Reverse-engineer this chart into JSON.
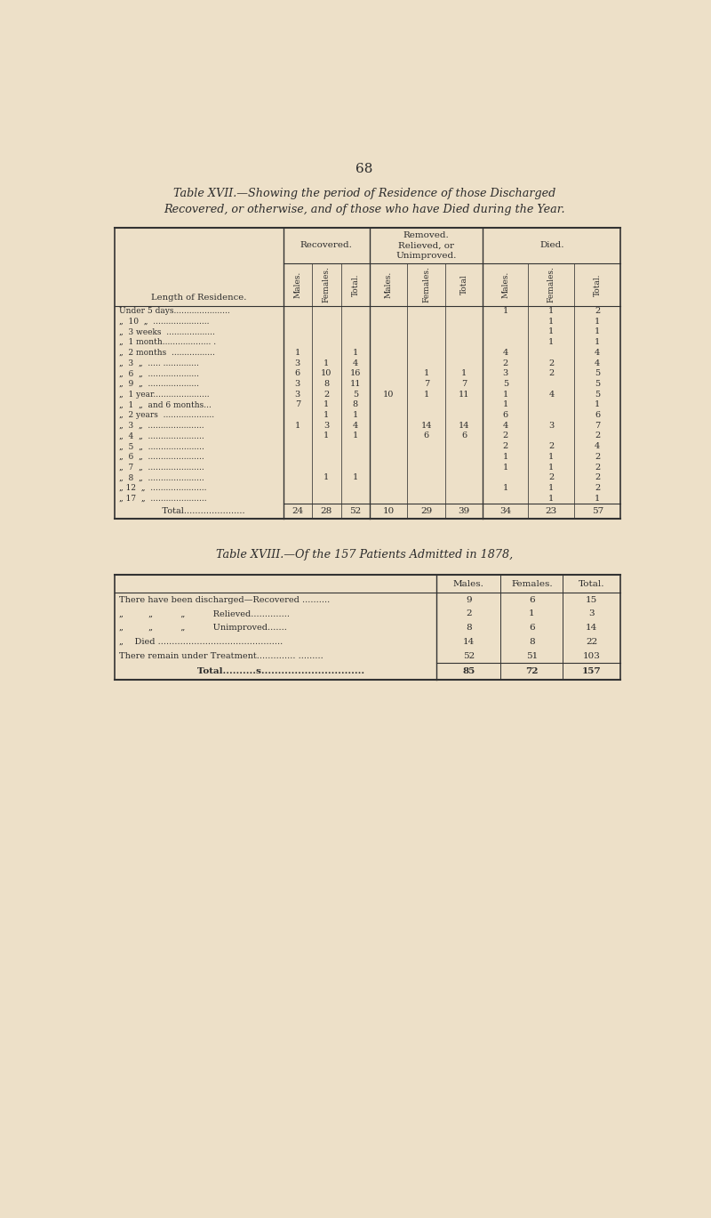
{
  "bg_color": "#EDE0C8",
  "page_number": "68",
  "title17_line1": "Table XVII.—Showing the period of Residence of those Discharged",
  "title17_line2": "Recovered, or otherwise, and of those who have Died during the Year.",
  "title18": "Table XVIII.—Of the 157 Patients Admitted in 1878,",
  "table17_subheaders": [
    "Males.",
    "Females.",
    "Total.",
    "Males.",
    "Females.",
    "Total",
    "Males.",
    "Females.",
    "Total."
  ],
  "table17_col0_header": "Length of Residence.",
  "table17_rows": [
    {
      "label": "Under 5 days......................",
      "rec_m": "",
      "rec_f": "",
      "rec_t": "",
      "rem_m": "",
      "rem_f": "",
      "rem_t": "",
      "die_m": "1",
      "die_f": "1",
      "die_t": "2"
    },
    {
      "label": "„  10  „  ......................",
      "rec_m": "",
      "rec_f": "",
      "rec_t": "",
      "rem_m": "",
      "rem_f": "",
      "rem_t": "",
      "die_m": "",
      "die_f": "1",
      "die_t": "1"
    },
    {
      "label": "„  3 weeks  ...................",
      "rec_m": "",
      "rec_f": "",
      "rec_t": "",
      "rem_m": "",
      "rem_f": "",
      "rem_t": "",
      "die_m": "",
      "die_f": "1",
      "die_t": "1"
    },
    {
      "label": "„  1 month................... .",
      "rec_m": "",
      "rec_f": "",
      "rec_t": "",
      "rem_m": "",
      "rem_f": "",
      "rem_t": "",
      "die_m": "",
      "die_f": "1",
      "die_t": "1"
    },
    {
      "label": "„  2 months  .................",
      "rec_m": "1",
      "rec_f": "",
      "rec_t": "1",
      "rem_m": "",
      "rem_f": "",
      "rem_t": "",
      "die_m": "4",
      "die_f": "",
      "die_t": "4"
    },
    {
      "label": "„  3  „  ..... ..............",
      "rec_m": "3",
      "rec_f": "1",
      "rec_t": "4",
      "rem_m": "",
      "rem_f": "",
      "rem_t": "",
      "die_m": "2",
      "die_f": "2",
      "die_t": "4"
    },
    {
      "label": "„  6  „  ....................",
      "rec_m": "6",
      "rec_f": "10",
      "rec_t": "16",
      "rem_m": "",
      "rem_f": "1",
      "rem_t": "1",
      "die_m": "3",
      "die_f": "2",
      "die_t": "5"
    },
    {
      "label": "„  9  „  ....................",
      "rec_m": "3",
      "rec_f": "8",
      "rec_t": "11",
      "rem_m": "",
      "rem_f": "7",
      "rem_t": "7",
      "die_m": "5",
      "die_f": "",
      "die_t": "5"
    },
    {
      "label": "„  1 year......................",
      "rec_m": "3",
      "rec_f": "2",
      "rec_t": "5",
      "rem_m": "10",
      "rem_f": "1",
      "rem_t": "11",
      "die_m": "1",
      "die_f": "4",
      "die_t": "5"
    },
    {
      "label": "„  1  „  and 6 months...",
      "rec_m": "7",
      "rec_f": "1",
      "rec_t": "8",
      "rem_m": "",
      "rem_f": "",
      "rem_t": "",
      "die_m": "1",
      "die_f": "",
      "die_t": "1"
    },
    {
      "label": "„  2 years  ....................",
      "rec_m": "",
      "rec_f": "1",
      "rec_t": "1",
      "rem_m": "",
      "rem_f": "",
      "rem_t": "",
      "die_m": "6",
      "die_f": "",
      "die_t": "6"
    },
    {
      "label": "„  3  „  ......................",
      "rec_m": "1",
      "rec_f": "3",
      "rec_t": "4",
      "rem_m": "",
      "rem_f": "14",
      "rem_t": "14",
      "die_m": "4",
      "die_f": "3",
      "die_t": "7"
    },
    {
      "label": "„  4  „  ......................",
      "rec_m": "",
      "rec_f": "1",
      "rec_t": "1",
      "rem_m": "",
      "rem_f": "6",
      "rem_t": "6",
      "die_m": "2",
      "die_f": "",
      "die_t": "2"
    },
    {
      "label": "„  5  „  ......................",
      "rec_m": "",
      "rec_f": "",
      "rec_t": "",
      "rem_m": "",
      "rem_f": "",
      "rem_t": "",
      "die_m": "2",
      "die_f": "2",
      "die_t": "4"
    },
    {
      "label": "„  6  „  ......................",
      "rec_m": "",
      "rec_f": "",
      "rec_t": "",
      "rem_m": "",
      "rem_f": "",
      "rem_t": "",
      "die_m": "1",
      "die_f": "1",
      "die_t": "2"
    },
    {
      "label": "„  7  „  ......................",
      "rec_m": "",
      "rec_f": "",
      "rec_t": "",
      "rem_m": "",
      "rem_f": "",
      "rem_t": "",
      "die_m": "1",
      "die_f": "1",
      "die_t": "2"
    },
    {
      "label": "„  8  „  ......................",
      "rec_m": "",
      "rec_f": "1",
      "rec_t": "1",
      "rem_m": "",
      "rem_f": "",
      "rem_t": "",
      "die_m": "",
      "die_f": "2",
      "die_t": "2"
    },
    {
      "label": "„ 12  „  ......................",
      "rec_m": "",
      "rec_f": "",
      "rec_t": "",
      "rem_m": "",
      "rem_f": "",
      "rem_t": "",
      "die_m": "1",
      "die_f": "1",
      "die_t": "2"
    },
    {
      "label": "„ 17  „  ......................",
      "rec_m": "",
      "rec_f": "",
      "rec_t": "",
      "rem_m": "",
      "rem_f": "",
      "rem_t": "",
      "die_m": "",
      "die_f": "1",
      "die_t": "1"
    }
  ],
  "table17_totals": {
    "label": "Total......................",
    "rec_m": "24",
    "rec_f": "28",
    "rec_t": "52",
    "rem_m": "10",
    "rem_f": "29",
    "rem_t": "39",
    "die_m": "34",
    "die_f": "23",
    "die_t": "57"
  },
  "table18_rows": [
    {
      "label": "There have been discharged—Recovered ..........",
      "males": "9",
      "females": "6",
      "total": "15"
    },
    {
      "label": "„         „          „          Relieved..............",
      "males": "2",
      "females": "1",
      "total": "3"
    },
    {
      "label": "„         „          „          Unimproved.......",
      "males": "8",
      "females": "6",
      "total": "14"
    },
    {
      "label": "„    Died .............................................",
      "males": "14",
      "females": "8",
      "total": "22"
    },
    {
      "label": "There remain under Treatment.............. .........",
      "males": "52",
      "females": "51",
      "total": "103"
    }
  ],
  "table18_total": {
    "label": "Total..........s...............................",
    "males": "85",
    "females": "72",
    "total": "157"
  },
  "table18_subheaders": [
    "Males.",
    "Females.",
    "Total."
  ]
}
